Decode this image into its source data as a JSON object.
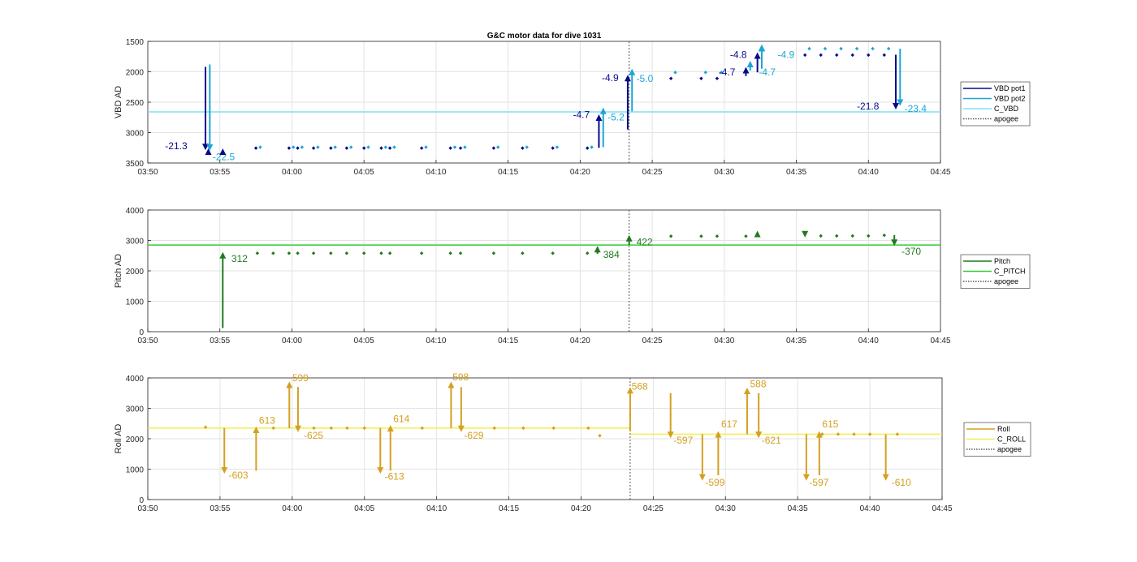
{
  "chart_data": [
    {
      "type": "line",
      "title": "G&C motor data for dive 1031",
      "ylabel": "VBD AD",
      "xlim": [
        "03:50",
        "04:45"
      ],
      "ylim": [
        1500,
        3500
      ],
      "y_reversed": true,
      "xticks": [
        "03:50",
        "03:55",
        "04:00",
        "04:05",
        "04:10",
        "04:15",
        "04:20",
        "04:25",
        "04:30",
        "04:35",
        "04:40",
        "04:45"
      ],
      "yticks": [
        1500,
        2000,
        2500,
        3000,
        3500
      ],
      "grid": true,
      "legend_position": "right",
      "legend": [
        {
          "name": "VBD pot1",
          "style": "line",
          "color": "#0a0a8c"
        },
        {
          "name": "VBD pot2",
          "style": "line",
          "color": "#1aa6d6"
        },
        {
          "name": "C_VBD",
          "style": "line",
          "color": "#7fe0f0"
        },
        {
          "name": "apogee",
          "style": "dotted",
          "color": "#555555"
        }
      ],
      "c_line": {
        "value": 2660,
        "color": "#7fe0f0"
      },
      "apogee": "04:23.4",
      "series": [
        {
          "name": "VBD pot1",
          "color": "#0a0a8c",
          "points": [
            [
              "03:57.5",
              3255
            ],
            [
              "03:59.8",
              3255
            ],
            [
              "04:00.4",
              3255
            ],
            [
              "04:01.5",
              3255
            ],
            [
              "04:02.7",
              3255
            ],
            [
              "04:03.8",
              3255
            ],
            [
              "04:05.0",
              3255
            ],
            [
              "04:06.2",
              3255
            ],
            [
              "04:06.8",
              3255
            ],
            [
              "04:09.0",
              3255
            ],
            [
              "04:11.0",
              3255
            ],
            [
              "04:11.7",
              3255
            ],
            [
              "04:14.0",
              3255
            ],
            [
              "04:16.0",
              3255
            ],
            [
              "04:18.1",
              3255
            ],
            [
              "04:20.5",
              3255
            ],
            [
              "04:26.3",
              2110
            ],
            [
              "04:28.4",
              2110
            ],
            [
              "04:29.5",
              2110
            ],
            [
              "04:35.6",
              1725
            ],
            [
              "04:36.7",
              1725
            ],
            [
              "04:37.8",
              1725
            ],
            [
              "04:38.9",
              1725
            ],
            [
              "04:40.0",
              1725
            ],
            [
              "04:41.1",
              1725
            ]
          ]
        },
        {
          "name": "VBD pot2",
          "color": "#1aa6d6",
          "points": [
            [
              "03:57.8",
              3240
            ],
            [
              "04:00.1",
              3240
            ],
            [
              "04:00.7",
              3240
            ],
            [
              "04:01.8",
              3240
            ],
            [
              "04:03.0",
              3240
            ],
            [
              "04:04.1",
              3240
            ],
            [
              "04:05.3",
              3240
            ],
            [
              "04:06.5",
              3240
            ],
            [
              "04:07.1",
              3240
            ],
            [
              "04:09.3",
              3240
            ],
            [
              "04:11.3",
              3240
            ],
            [
              "04:12.0",
              3240
            ],
            [
              "04:14.3",
              3240
            ],
            [
              "04:16.3",
              3240
            ],
            [
              "04:18.4",
              3240
            ],
            [
              "04:20.8",
              3240
            ],
            [
              "04:26.6",
              2010
            ],
            [
              "04:28.7",
              2010
            ],
            [
              "04:29.8",
              2010
            ],
            [
              "04:35.9",
              1620
            ],
            [
              "04:37.0",
              1620
            ],
            [
              "04:38.1",
              1620
            ],
            [
              "04:39.2",
              1620
            ],
            [
              "04:40.3",
              1620
            ],
            [
              "04:41.4",
              1620
            ]
          ]
        }
      ],
      "arrows": [
        {
          "x": "03:54.0",
          "from": 1920,
          "to": 3290,
          "color": "#0a0a8c",
          "label": "-21.3",
          "lx": "03:51.2",
          "ly": 3270,
          "anchor": "start"
        },
        {
          "x": "03:54.3",
          "from": 1880,
          "to": 3300,
          "color": "#1aa6d6",
          "label": "-22.5",
          "lx": "03:54.5",
          "ly": 3450,
          "anchor": "start"
        },
        {
          "x": "03:54.2",
          "from": 3340,
          "to": 3260,
          "color": "#0a0a8c",
          "label": "",
          "lx": "",
          "ly": 0,
          "anchor": "start"
        },
        {
          "x": "03:55.2",
          "from": 3340,
          "to": 3260,
          "color": "#0a0a8c",
          "label": "",
          "lx": "",
          "ly": 0,
          "anchor": "start"
        },
        {
          "x": "04:21.3",
          "from": 3250,
          "to": 2700,
          "color": "#0a0a8c",
          "label": "-4.7",
          "lx": "04:19.5",
          "ly": 2760,
          "anchor": "start"
        },
        {
          "x": "04:21.6",
          "from": 3240,
          "to": 2590,
          "color": "#1aa6d6",
          "label": "-5.2",
          "lx": "04:21.9",
          "ly": 2800,
          "anchor": "start"
        },
        {
          "x": "04:23.3",
          "from": 2950,
          "to": 2050,
          "color": "#0a0a8c",
          "label": "-4.9",
          "lx": "04:21.5",
          "ly": 2150,
          "anchor": "start"
        },
        {
          "x": "04:23.6",
          "from": 2650,
          "to": 1950,
          "color": "#1aa6d6",
          "label": "-5.0",
          "lx": "04:23.9",
          "ly": 2165,
          "anchor": "start"
        },
        {
          "x": "04:31.5",
          "from": 2070,
          "to": 1920,
          "color": "#0a0a8c",
          "label": "-4.7",
          "lx": "04:29.6",
          "ly": 2060,
          "anchor": "start"
        },
        {
          "x": "04:31.8",
          "from": 1980,
          "to": 1820,
          "color": "#1aa6d6",
          "label": "",
          "lx": "",
          "ly": 0,
          "anchor": "start"
        },
        {
          "x": "04:32.3",
          "from": 2010,
          "to": 1680,
          "color": "#0a0a8c",
          "label": "-4.8",
          "lx": "04:30.4",
          "ly": 1770,
          "anchor": "start"
        },
        {
          "x": "04:32.6",
          "from": 1950,
          "to": 1550,
          "color": "#1aa6d6",
          "label": "-4.7",
          "lx": "04:32.4",
          "ly": 2060,
          "anchor": "start"
        },
        {
          "x": "04:32.6",
          "from": 1620,
          "to": 1560,
          "color": "#1aa6d6",
          "label": "-4.9",
          "lx": "04:33.7",
          "ly": 1775,
          "anchor": "start"
        },
        {
          "x": "04:41.9",
          "from": 1720,
          "to": 2620,
          "color": "#0a0a8c",
          "label": "-21.8",
          "lx": "04:39.2",
          "ly": 2620,
          "anchor": "start"
        },
        {
          "x": "04:42.2",
          "from": 1620,
          "to": 2560,
          "color": "#1aa6d6",
          "label": "-23.4",
          "lx": "04:42.5",
          "ly": 2660,
          "anchor": "start"
        }
      ]
    },
    {
      "type": "line",
      "title": "",
      "ylabel": "Pitch AD",
      "xlim": [
        "03:50",
        "04:45"
      ],
      "ylim": [
        0,
        4000
      ],
      "y_reversed": false,
      "xticks": [
        "03:50",
        "03:55",
        "04:00",
        "04:05",
        "04:10",
        "04:15",
        "04:20",
        "04:25",
        "04:30",
        "04:35",
        "04:40",
        "04:45"
      ],
      "yticks": [
        0,
        1000,
        2000,
        3000,
        4000
      ],
      "grid": true,
      "legend_position": "right",
      "legend": [
        {
          "name": "Pitch",
          "style": "line",
          "color": "#1f7a1f"
        },
        {
          "name": "C_PITCH",
          "style": "line",
          "color": "#33cc33"
        },
        {
          "name": "apogee",
          "style": "dotted",
          "color": "#555555"
        }
      ],
      "c_line": {
        "value": 2850,
        "color": "#33cc33"
      },
      "apogee": "04:23.4",
      "series": [
        {
          "name": "Pitch",
          "color": "#1f7a1f",
          "points": [
            [
              "03:57.6",
              2580
            ],
            [
              "03:58.7",
              2580
            ],
            [
              "03:59.8",
              2580
            ],
            [
              "04:00.4",
              2580
            ],
            [
              "04:01.5",
              2580
            ],
            [
              "04:02.7",
              2580
            ],
            [
              "04:03.8",
              2580
            ],
            [
              "04:05.0",
              2580
            ],
            [
              "04:06.2",
              2580
            ],
            [
              "04:06.8",
              2580
            ],
            [
              "04:09.0",
              2580
            ],
            [
              "04:11.0",
              2580
            ],
            [
              "04:11.7",
              2580
            ],
            [
              "04:14.0",
              2580
            ],
            [
              "04:16.0",
              2580
            ],
            [
              "04:18.1",
              2580
            ],
            [
              "04:20.5",
              2580
            ],
            [
              "04:26.3",
              3140
            ],
            [
              "04:28.4",
              3140
            ],
            [
              "04:29.5",
              3140
            ],
            [
              "04:31.5",
              3140
            ],
            [
              "04:36.7",
              3150
            ],
            [
              "04:37.8",
              3150
            ],
            [
              "04:38.9",
              3150
            ],
            [
              "04:40.0",
              3150
            ],
            [
              "04:41.1",
              3170
            ]
          ]
        }
      ],
      "arrows": [
        {
          "x": "03:55.2",
          "from": 120,
          "to": 2620,
          "color": "#1f7a1f",
          "label": "312",
          "lx": "03:55.8",
          "ly": 2300,
          "anchor": "start"
        },
        {
          "x": "04:21.2",
          "from": 2560,
          "to": 2820,
          "color": "#1f7a1f",
          "label": "384",
          "lx": "04:21.6",
          "ly": 2430,
          "anchor": "start"
        },
        {
          "x": "04:23.4",
          "from": 2850,
          "to": 3180,
          "color": "#1f7a1f",
          "label": "422",
          "lx": "04:23.9",
          "ly": 2840,
          "anchor": "start"
        },
        {
          "x": "04:32.3",
          "from": 3150,
          "to": 3320,
          "color": "#1f7a1f",
          "label": "",
          "lx": "",
          "ly": 0,
          "anchor": "start"
        },
        {
          "x": "04:35.6",
          "from": 3250,
          "to": 3100,
          "color": "#1f7a1f",
          "label": "",
          "lx": "",
          "ly": 0,
          "anchor": "start"
        },
        {
          "x": "04:41.8",
          "from": 3180,
          "to": 2820,
          "color": "#1f7a1f",
          "label": "-370",
          "lx": "04:42.3",
          "ly": 2540,
          "anchor": "start"
        }
      ]
    },
    {
      "type": "line",
      "title": "",
      "ylabel": "Roll AD",
      "xlim": [
        "03:50",
        "04:45"
      ],
      "ylim": [
        0,
        4000
      ],
      "y_reversed": false,
      "xticks": [
        "03:50",
        "03:55",
        "04:00",
        "04:05",
        "04:10",
        "04:15",
        "04:20",
        "04:25",
        "04:30",
        "04:35",
        "04:40",
        "04:45"
      ],
      "yticks": [
        0,
        1000,
        2000,
        3000,
        4000
      ],
      "grid": true,
      "legend_position": "right",
      "legend": [
        {
          "name": "Roll",
          "style": "line",
          "color": "#d4a020"
        },
        {
          "name": "C_ROLL",
          "style": "line",
          "color": "#f2ee50"
        },
        {
          "name": "apogee",
          "style": "dotted",
          "color": "#555555"
        }
      ],
      "c_line_segments": [
        {
          "from": "03:50",
          "to": "04:23.4",
          "value": 2350
        },
        {
          "from": "04:23.4",
          "to": "04:45",
          "value": 2150
        }
      ],
      "c_line_color": "#f2ee50",
      "apogee": "04:23.4",
      "series": [
        {
          "name": "Roll",
          "color": "#d4a020",
          "points": [
            [
              "03:54.0",
              2380
            ],
            [
              "03:58.7",
              2350
            ],
            [
              "04:01.5",
              2350
            ],
            [
              "04:02.7",
              2350
            ],
            [
              "04:03.8",
              2350
            ],
            [
              "04:05.0",
              2350
            ],
            [
              "04:09.0",
              2350
            ],
            [
              "04:14.0",
              2350
            ],
            [
              "04:16.0",
              2350
            ],
            [
              "04:18.1",
              2350
            ],
            [
              "04:20.5",
              2350
            ],
            [
              "04:21.3",
              2100
            ],
            [
              "04:36.7",
              2150
            ],
            [
              "04:37.8",
              2150
            ],
            [
              "04:38.9",
              2150
            ],
            [
              "04:40.0",
              2150
            ],
            [
              "04:41.9",
              2150
            ]
          ]
        }
      ],
      "arrows": [
        {
          "x": "03:55.3",
          "from": 2350,
          "to": 850,
          "color": "#d4a020",
          "label": "-603",
          "lx": "03:55.6",
          "ly": 700,
          "anchor": "start"
        },
        {
          "x": "03:57.5",
          "from": 950,
          "to": 2400,
          "color": "#d4a020",
          "label": "613",
          "lx": "03:57.7",
          "ly": 2500,
          "anchor": "start"
        },
        {
          "x": "03:59.8",
          "from": 2350,
          "to": 3880,
          "color": "#d4a020",
          "label": "599",
          "lx": "04:00.0",
          "ly": 3900,
          "anchor": "start"
        },
        {
          "x": "04:00.4",
          "from": 3700,
          "to": 2220,
          "color": "#d4a020",
          "label": "-625",
          "lx": "04:00.8",
          "ly": 2000,
          "anchor": "start"
        },
        {
          "x": "04:06.1",
          "from": 2350,
          "to": 850,
          "color": "#d4a020",
          "label": "-613",
          "lx": "04:06.4",
          "ly": 650,
          "anchor": "start"
        },
        {
          "x": "04:06.8",
          "from": 950,
          "to": 2450,
          "color": "#d4a020",
          "label": "614",
          "lx": "04:07.0",
          "ly": 2550,
          "anchor": "start"
        },
        {
          "x": "04:11.0",
          "from": 2350,
          "to": 3880,
          "color": "#d4a020",
          "label": "598",
          "lx": "04:11.1",
          "ly": 3920,
          "anchor": "start"
        },
        {
          "x": "04:11.7",
          "from": 3700,
          "to": 2220,
          "color": "#d4a020",
          "label": "-629",
          "lx": "04:11.9",
          "ly": 2000,
          "anchor": "start"
        },
        {
          "x": "04:23.4",
          "from": 2250,
          "to": 3700,
          "color": "#d4a020",
          "label": "568",
          "lx": "04:23.5",
          "ly": 3620,
          "anchor": "start"
        },
        {
          "x": "04:26.2",
          "from": 3500,
          "to": 2020,
          "color": "#d4a020",
          "label": "-597",
          "lx": "04:26.4",
          "ly": 1840,
          "anchor": "start"
        },
        {
          "x": "04:28.4",
          "from": 2150,
          "to": 620,
          "color": "#d4a020",
          "label": "-599",
          "lx": "04:28.6",
          "ly": 460,
          "anchor": "start"
        },
        {
          "x": "04:29.5",
          "from": 800,
          "to": 2250,
          "color": "#d4a020",
          "label": "617",
          "lx": "04:29.7",
          "ly": 2370,
          "anchor": "start"
        },
        {
          "x": "04:31.5",
          "from": 2150,
          "to": 3680,
          "color": "#d4a020",
          "label": "588",
          "lx": "04:31.7",
          "ly": 3690,
          "anchor": "start"
        },
        {
          "x": "04:32.3",
          "from": 3500,
          "to": 2020,
          "color": "#d4a020",
          "label": "-621",
          "lx": "04:32.5",
          "ly": 1840,
          "anchor": "start"
        },
        {
          "x": "04:35.6",
          "from": 2150,
          "to": 620,
          "color": "#d4a020",
          "label": "-597",
          "lx": "04:35.8",
          "ly": 450,
          "anchor": "start"
        },
        {
          "x": "04:36.5",
          "from": 800,
          "to": 2250,
          "color": "#d4a020",
          "label": "615",
          "lx": "04:36.7",
          "ly": 2370,
          "anchor": "start"
        },
        {
          "x": "04:41.1",
          "from": 2150,
          "to": 620,
          "color": "#d4a020",
          "label": "-610",
          "lx": "04:41.5",
          "ly": 450,
          "anchor": "start"
        }
      ]
    }
  ]
}
